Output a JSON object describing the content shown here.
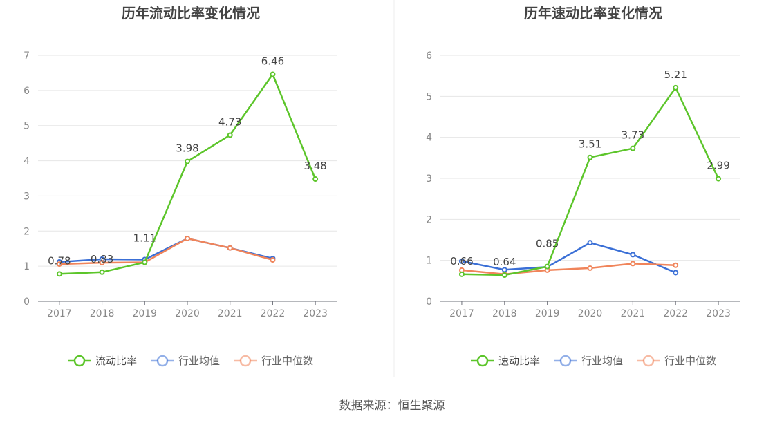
{
  "source_label": "数据来源：恒生聚源",
  "chart_data": [
    {
      "type": "line",
      "title": "历年流动比率变化情况",
      "categories": [
        "2017",
        "2018",
        "2019",
        "2020",
        "2021",
        "2022",
        "2023"
      ],
      "ylim": [
        0,
        7
      ],
      "yticks": [
        0,
        1,
        2,
        3,
        4,
        5,
        6,
        7
      ],
      "grid": true,
      "legend_position": "bottom",
      "series": [
        {
          "name": "流动比率",
          "color": "#5cc52a",
          "values": [
            0.78,
            0.83,
            1.11,
            3.98,
            4.73,
            6.46,
            3.48
          ],
          "labels": [
            "0.78",
            "0.83",
            "1.11",
            "3.98",
            "4.73",
            "6.46",
            "3.48"
          ]
        },
        {
          "name": "行业均值",
          "color": "#3a6fd6",
          "values": [
            1.12,
            1.2,
            1.19,
            1.79,
            1.52,
            1.22,
            null
          ]
        },
        {
          "name": "行业中位数",
          "color": "#f0845a",
          "values": [
            1.06,
            1.1,
            1.11,
            1.79,
            1.52,
            1.18,
            null
          ]
        }
      ]
    },
    {
      "type": "line",
      "title": "历年速动比率变化情况",
      "categories": [
        "2017",
        "2018",
        "2019",
        "2020",
        "2021",
        "2022",
        "2023"
      ],
      "ylim": [
        0,
        6
      ],
      "yticks": [
        0,
        1,
        2,
        3,
        4,
        5,
        6
      ],
      "grid": true,
      "legend_position": "bottom",
      "series": [
        {
          "name": "速动比率",
          "color": "#5cc52a",
          "values": [
            0.66,
            0.64,
            0.85,
            3.51,
            3.73,
            5.21,
            2.99
          ],
          "labels": [
            "0.66",
            "0.64",
            "0.85",
            "3.51",
            "3.73",
            "5.21",
            "2.99"
          ]
        },
        {
          "name": "行业均值",
          "color": "#3a6fd6",
          "values": [
            0.98,
            0.77,
            0.84,
            1.43,
            1.14,
            0.7,
            null
          ]
        },
        {
          "name": "行业中位数",
          "color": "#f0845a",
          "values": [
            0.76,
            0.66,
            0.76,
            0.81,
            0.92,
            0.88,
            null
          ]
        }
      ]
    }
  ]
}
